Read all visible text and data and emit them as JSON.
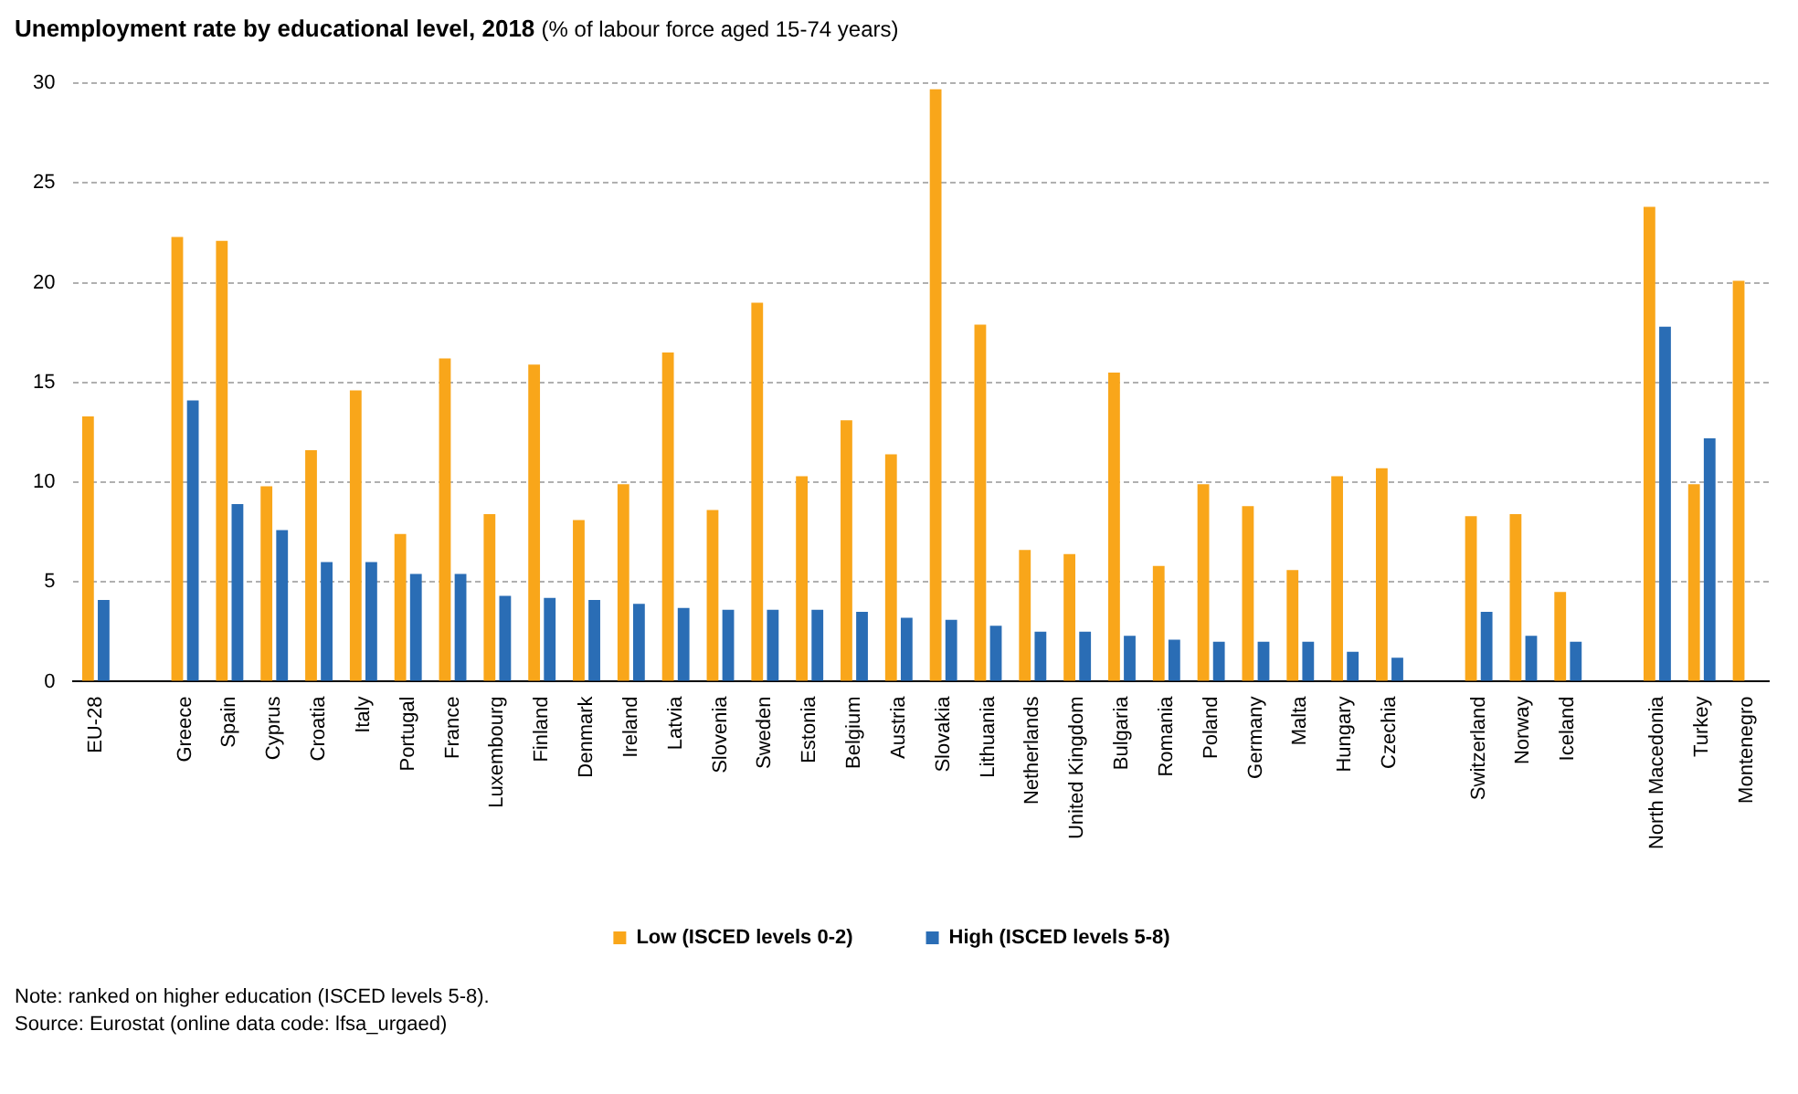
{
  "chart_data": {
    "type": "bar",
    "title": "Unemployment rate by educational level, 2018",
    "subtitle": "(% of labour force aged 15-74 years)",
    "categories": [
      "EU-28",
      null,
      "Greece",
      "Spain",
      "Cyprus",
      "Croatia",
      "Italy",
      "Portugal",
      "France",
      "Luxembourg",
      "Finland",
      "Denmark",
      "Ireland",
      "Latvia",
      "Slovenia",
      "Sweden",
      "Estonia",
      "Belgium",
      "Austria",
      "Slovakia",
      "Lithuania",
      "Netherlands",
      "United Kingdom",
      "Bulgaria",
      "Romania",
      "Poland",
      "Germany",
      "Malta",
      "Hungary",
      "Czechia",
      null,
      "Switzerland",
      "Norway",
      "Iceland",
      null,
      "North Macedonia",
      "Turkey",
      "Montenegro"
    ],
    "series": [
      {
        "name": "Low (ISCED levels 0-2)",
        "color": "#f9a61a",
        "values": [
          13.3,
          null,
          22.3,
          22.1,
          9.8,
          11.6,
          14.6,
          7.4,
          16.2,
          8.4,
          15.9,
          8.1,
          9.9,
          16.5,
          8.6,
          19.0,
          10.3,
          13.1,
          11.4,
          29.7,
          17.9,
          6.6,
          6.4,
          15.5,
          5.8,
          9.9,
          8.8,
          5.6,
          10.3,
          10.7,
          null,
          8.3,
          8.4,
          4.5,
          null,
          23.8,
          9.9,
          20.1
        ]
      },
      {
        "name": "High (ISCED levels 5-8)",
        "color": "#2a6db5",
        "values": [
          4.1,
          null,
          14.1,
          8.9,
          7.6,
          6.0,
          6.0,
          5.4,
          5.4,
          4.3,
          4.2,
          4.1,
          3.9,
          3.7,
          3.6,
          3.6,
          3.6,
          3.5,
          3.2,
          3.1,
          2.8,
          2.5,
          2.5,
          2.3,
          2.1,
          2.0,
          2.0,
          2.0,
          1.5,
          1.2,
          null,
          3.5,
          2.3,
          2.0,
          null,
          17.8,
          12.2,
          null
        ]
      }
    ],
    "ylim": [
      0,
      30
    ],
    "yticks": [
      0,
      5,
      10,
      15,
      20,
      25,
      30
    ],
    "grid": "y",
    "legend": "bottom",
    "annotations": [
      "Note: ranked on higher education (ISCED levels 5-8).",
      "Source: Eurostat (online data code: lfsa_urgaed)"
    ]
  }
}
